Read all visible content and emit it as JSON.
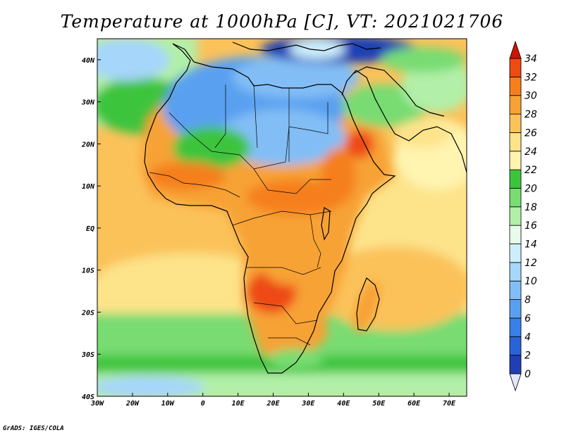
{
  "title": "Temperature at 1000hPa [C], VT: 2021021706",
  "credit": "GrADS: IGES/COLA",
  "map": {
    "lon_range": [
      -30,
      75
    ],
    "lat_range": [
      -40,
      45
    ],
    "lat_ticks": [
      {
        "value": 40,
        "label": "40N"
      },
      {
        "value": 30,
        "label": "30N"
      },
      {
        "value": 20,
        "label": "20N"
      },
      {
        "value": 10,
        "label": "10N"
      },
      {
        "value": 0,
        "label": "EQ"
      },
      {
        "value": -10,
        "label": "10S"
      },
      {
        "value": -20,
        "label": "20S"
      },
      {
        "value": -30,
        "label": "30S"
      },
      {
        "value": -40,
        "label": "40S"
      }
    ],
    "lon_ticks": [
      {
        "value": -30,
        "label": "30W"
      },
      {
        "value": -20,
        "label": "20W"
      },
      {
        "value": -10,
        "label": "10W"
      },
      {
        "value": 0,
        "label": "0"
      },
      {
        "value": 10,
        "label": "10E"
      },
      {
        "value": 20,
        "label": "20E"
      },
      {
        "value": 30,
        "label": "30E"
      },
      {
        "value": 40,
        "label": "40E"
      },
      {
        "value": 50,
        "label": "50E"
      },
      {
        "value": 60,
        "label": "60E"
      },
      {
        "value": 70,
        "label": "70E"
      }
    ]
  },
  "colorbar": {
    "min": 0,
    "max": 34,
    "labels": [
      "0",
      "2",
      "4",
      "6",
      "8",
      "10",
      "12",
      "14",
      "16",
      "18",
      "20",
      "22",
      "24",
      "26",
      "28",
      "30",
      "32",
      "34"
    ],
    "colors": [
      "#1a1a7a",
      "#1f3fb5",
      "#2a62d8",
      "#3a80e8",
      "#5aa0f0",
      "#82bef5",
      "#a6d6fa",
      "#cdeffc",
      "#e6fbe9",
      "#b2efa8",
      "#78dc72",
      "#3cc43c",
      "#fff4b0",
      "#fde38a",
      "#fbc25a",
      "#f7a236",
      "#f57f1c",
      "#ee4a12",
      "#cc1500"
    ]
  }
}
